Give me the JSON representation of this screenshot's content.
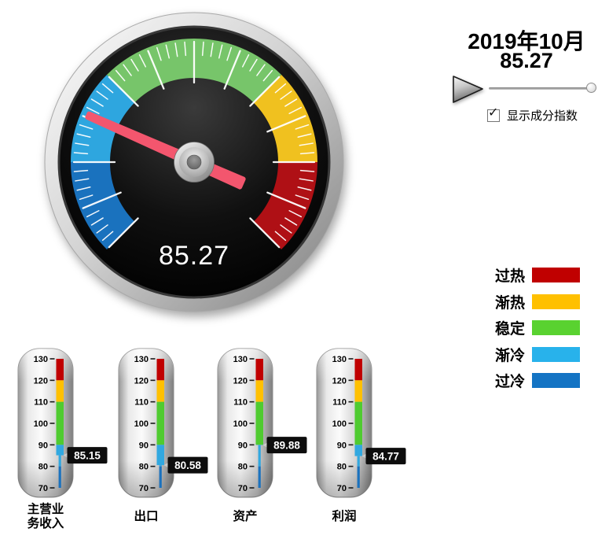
{
  "header": {
    "date": "2019年10月",
    "value": "85.27"
  },
  "controls": {
    "play_icon": "play-triangle",
    "slider_position": 1.0,
    "checkbox_checked": true,
    "checkbox_label": "显示成分指数",
    "check_glyph": "✓"
  },
  "legend": [
    {
      "label": "过热",
      "color": "#C00000"
    },
    {
      "label": "渐热",
      "color": "#FFC000"
    },
    {
      "label": "稳定",
      "color": "#59D230"
    },
    {
      "label": "渐冷",
      "color": "#28B2EB"
    },
    {
      "label": "过冷",
      "color": "#1474C4"
    }
  ],
  "chart_data": [
    {
      "type": "gauge",
      "title": "2019年10月",
      "value": 85.27,
      "display_value": "85.27",
      "min": 70,
      "max": 130,
      "start_angle_deg": 225,
      "sweep_deg": 270,
      "tick_minor": 1,
      "tick_major": 5,
      "zones": [
        {
          "label": "过冷",
          "from": 70,
          "to": 80,
          "color": "#1A72BE"
        },
        {
          "label": "渐冷",
          "from": 80,
          "to": 90,
          "color": "#2EA6DF"
        },
        {
          "label": "稳定",
          "from": 90,
          "to": 110,
          "color": "#77C56A"
        },
        {
          "label": "渐热",
          "from": 110,
          "to": 120,
          "color": "#F0C11F"
        },
        {
          "label": "过热",
          "from": 120,
          "to": 130,
          "color": "#AF1015"
        }
      ],
      "needle_color": "#F3566E"
    },
    {
      "type": "thermometer-bars",
      "min": 70,
      "max": 130,
      "tick_labels": [
        130,
        120,
        110,
        100,
        90,
        80,
        70
      ],
      "zones": [
        {
          "from": 120,
          "to": 130,
          "color": "#C00000"
        },
        {
          "from": 110,
          "to": 120,
          "color": "#FFC000"
        },
        {
          "from": 90,
          "to": 110,
          "color": "#4FCB30"
        },
        {
          "from": 80,
          "to": 90,
          "color": "#31A8E0"
        },
        {
          "from": 70,
          "to": 80,
          "color": "#1B72BE"
        }
      ],
      "categories": [
        "主营业务收入",
        "出口",
        "资产",
        "利润"
      ],
      "category_lines": [
        [
          "主营业",
          "务收入"
        ],
        [
          "出口"
        ],
        [
          "资产"
        ],
        [
          "利润"
        ]
      ],
      "values": [
        85.15,
        80.58,
        89.88,
        84.77
      ],
      "display_values": [
        "85.15",
        "80.58",
        "89.88",
        "84.77"
      ]
    }
  ]
}
